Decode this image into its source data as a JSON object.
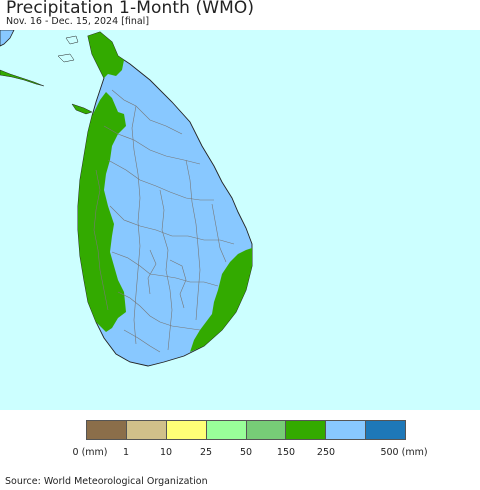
{
  "title": "Precipitation 1-Month (WMO)",
  "subtitle": "Nov. 16 - Dec. 15, 2024 [final]",
  "source": "Source: World Meteorological Organization",
  "colors": {
    "ocean": "#ccffff",
    "land_high": "#88c8ff",
    "land_mid": "#33aa00",
    "border": "#777777"
  },
  "legend": {
    "swatches": [
      {
        "color": "#8b6e4a",
        "range": "0-1"
      },
      {
        "color": "#d1c08a",
        "range": "1-10"
      },
      {
        "color": "#ffff77",
        "range": "10-25"
      },
      {
        "color": "#99ff99",
        "range": "25-50"
      },
      {
        "color": "#77cc77",
        "range": "50-150"
      },
      {
        "color": "#33aa00",
        "range": "150-250"
      },
      {
        "color": "#88c8ff",
        "range": "250-500"
      },
      {
        "color": "#1e78b8",
        "range": "500+"
      }
    ],
    "ticks": [
      "0 (mm)",
      "1",
      "10",
      "25",
      "50",
      "150",
      "250",
      "500 (mm)"
    ]
  }
}
